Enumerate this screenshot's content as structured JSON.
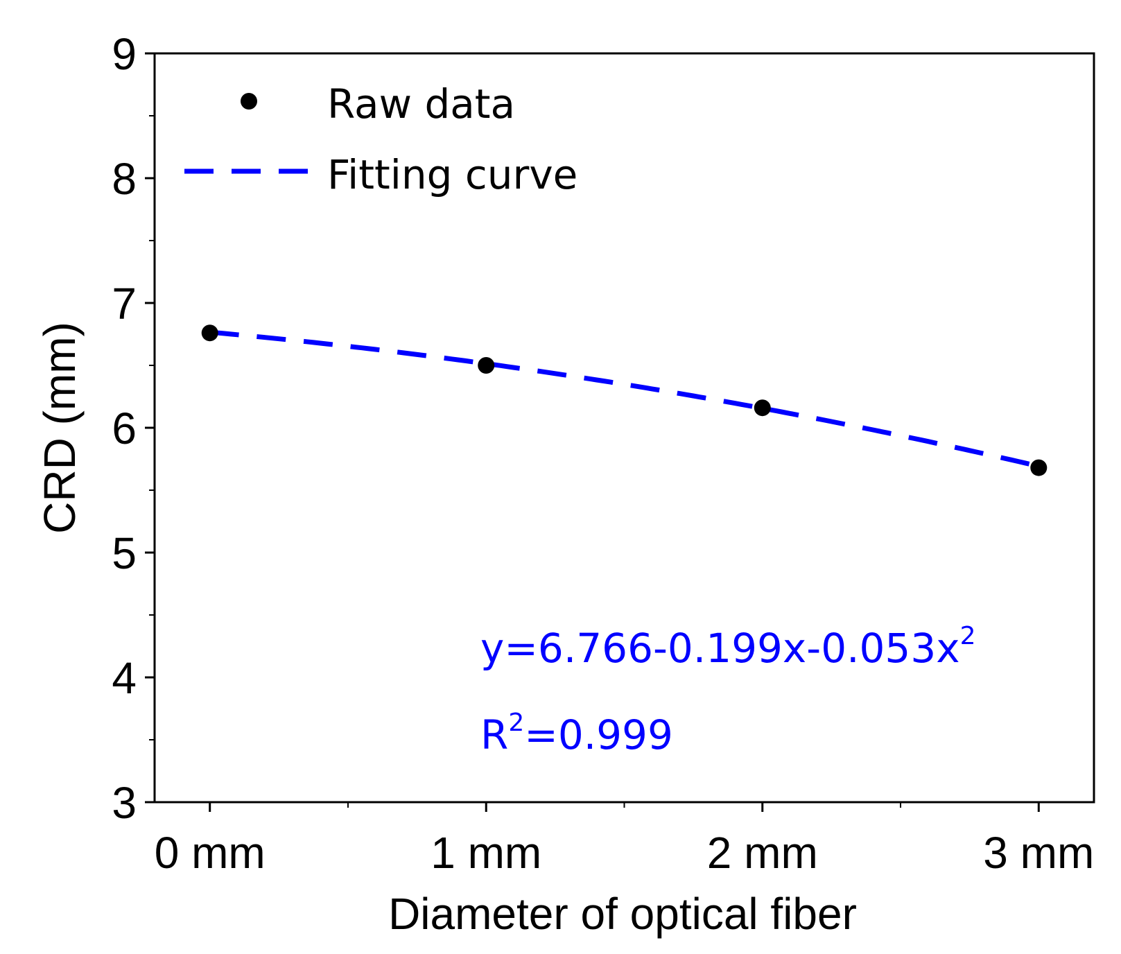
{
  "chart_data": {
    "type": "scatter",
    "title": "",
    "xlabel": "Diameter of optical fiber",
    "ylabel": "CRD (mm)",
    "categories": [
      "0 mm",
      "1 mm",
      "2 mm",
      "3 mm"
    ],
    "x": [
      0,
      1,
      2,
      3
    ],
    "xlim": [
      -0.2,
      3.2
    ],
    "ylim": [
      3,
      9
    ],
    "yticks": [
      "3",
      "4",
      "5",
      "6",
      "7",
      "8",
      "9"
    ],
    "series": [
      {
        "name": "Raw data",
        "style": "points",
        "color": "#000000",
        "values": [
          6.76,
          6.5,
          6.16,
          5.68
        ]
      },
      {
        "name": "Fitting curve",
        "style": "dashed-line",
        "color": "#0000ff",
        "equation": {
          "a": 6.766,
          "b": -0.199,
          "c": -0.053
        }
      }
    ],
    "legend": {
      "position": "top-left",
      "entries": [
        "Raw data",
        "Fitting curve"
      ]
    },
    "annotations": {
      "equation_main": "y=6.766-0.199x-0.053x",
      "equation_sup": "2",
      "r2_prefix": "R",
      "r2_sup": "2",
      "r2_value": "=0.999",
      "color": "#0000ff"
    },
    "grid": false
  }
}
